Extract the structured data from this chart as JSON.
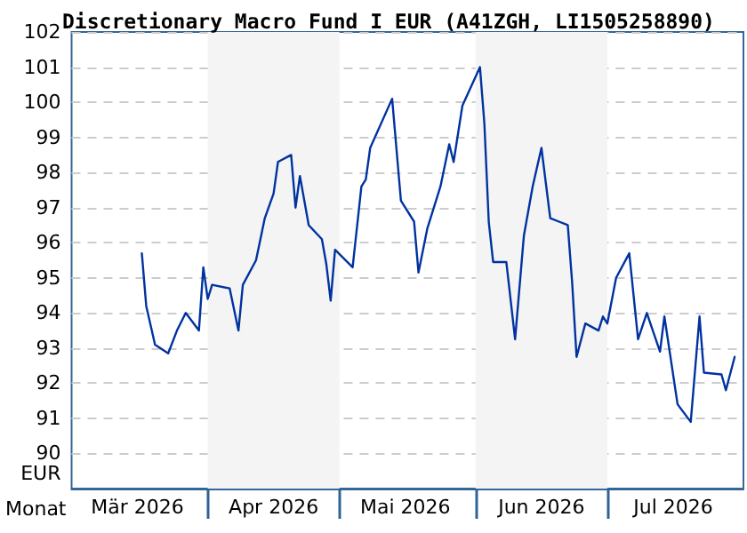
{
  "chart_data": {
    "type": "line",
    "title": "Discretionary Macro Fund I EUR (A41ZGH, LI1505258890)",
    "xlabel": "Monat",
    "ylabel": "EUR",
    "x": [
      "2026-03-17",
      "2026-03-18",
      "2026-03-20",
      "2026-03-23",
      "2026-03-25",
      "2026-03-27",
      "2026-03-30",
      "2026-03-31",
      "2026-04-01",
      "2026-04-02",
      "2026-04-06",
      "2026-04-08",
      "2026-04-09",
      "2026-04-12",
      "2026-04-14",
      "2026-04-16",
      "2026-04-17",
      "2026-04-20",
      "2026-04-21",
      "2026-04-22",
      "2026-04-24",
      "2026-04-27",
      "2026-04-28",
      "2026-04-29",
      "2026-04-30",
      "2026-05-04",
      "2026-05-06",
      "2026-05-07",
      "2026-05-08",
      "2026-05-13",
      "2026-05-15",
      "2026-05-18",
      "2026-05-19",
      "2026-05-21",
      "2026-05-24",
      "2026-05-26",
      "2026-05-27",
      "2026-05-29",
      "2026-06-02",
      "2026-06-03",
      "2026-06-04",
      "2026-06-05",
      "2026-06-08",
      "2026-06-10",
      "2026-06-12",
      "2026-06-14",
      "2026-06-16",
      "2026-06-18",
      "2026-06-20",
      "2026-06-22",
      "2026-06-23",
      "2026-06-24",
      "2026-06-26",
      "2026-06-29",
      "2026-06-30",
      "2026-07-01",
      "2026-07-03",
      "2026-07-06",
      "2026-07-08",
      "2026-07-10",
      "2026-07-13",
      "2026-07-14",
      "2026-07-17",
      "2026-07-20",
      "2026-07-22",
      "2026-07-23",
      "2026-07-27",
      "2026-07-28",
      "2026-07-30"
    ],
    "series": [
      {
        "color": "#0033a0",
        "values": [
          95.7,
          94.2,
          93.1,
          92.85,
          93.5,
          94.0,
          93.5,
          95.3,
          94.4,
          94.8,
          94.7,
          93.5,
          94.8,
          95.5,
          96.7,
          97.4,
          98.3,
          98.5,
          97.0,
          97.9,
          96.5,
          96.1,
          95.4,
          94.35,
          95.8,
          95.3,
          97.6,
          97.8,
          98.7,
          100.1,
          97.2,
          96.6,
          95.15,
          96.4,
          97.6,
          98.8,
          98.3,
          99.9,
          101.0,
          99.4,
          96.6,
          95.45,
          95.45,
          93.25,
          96.2,
          97.6,
          98.7,
          96.7,
          96.6,
          96.5,
          94.85,
          92.75,
          93.7,
          93.5,
          93.9,
          93.7,
          95.0,
          95.7,
          93.25,
          94.0,
          92.9,
          93.9,
          91.4,
          90.9,
          93.9,
          92.3,
          92.25,
          91.8,
          92.75
        ]
      }
    ],
    "xlim": [
      "2026-03-01",
      "2026-08-01"
    ],
    "xticks": [
      {
        "value": "2026-03-16",
        "label": "Mär 2026"
      },
      {
        "value": "2026-04-16",
        "label": "Apr 2026"
      },
      {
        "value": "2026-05-16",
        "label": "Mai 2026"
      },
      {
        "value": "2026-06-16",
        "label": "Jun 2026"
      },
      {
        "value": "2026-07-16",
        "label": "Jul 2026"
      }
    ],
    "ylim": [
      89,
      102
    ],
    "yticks": [
      90,
      91,
      92,
      93,
      94,
      95,
      96,
      97,
      98,
      99,
      100,
      101,
      102
    ],
    "bands": [
      {
        "axis": "x",
        "from": "2026-04-01",
        "to": "2026-05-01",
        "color": "#f4f4f4"
      },
      {
        "axis": "x",
        "from": "2026-06-01",
        "to": "2026-07-01",
        "color": "#f4f4f4"
      }
    ],
    "grid": "y",
    "marker": "none",
    "line_style": "solid"
  }
}
